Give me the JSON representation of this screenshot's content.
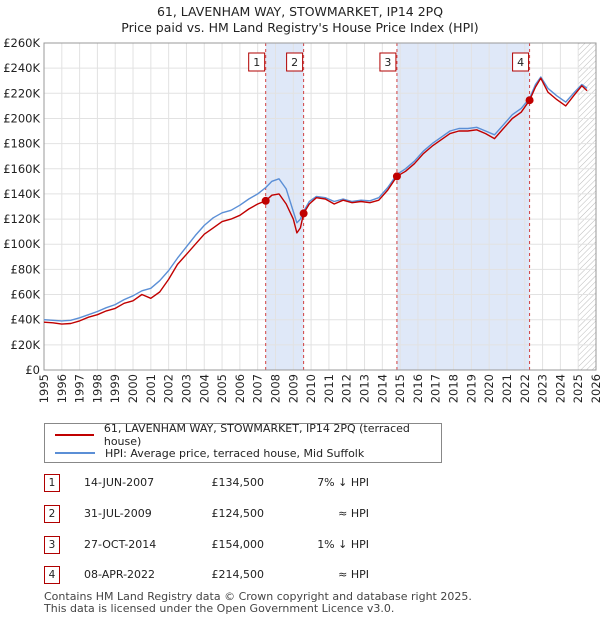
{
  "chart_data": {
    "type": "line",
    "title": "61, LAVENHAM WAY, STOWMARKET, IP14 2PQ",
    "subtitle": "Price paid vs. HM Land Registry's House Price Index (HPI)",
    "xlim": [
      1995,
      2026
    ],
    "ylim": [
      0,
      260000
    ],
    "y_ticks": [
      0,
      20000,
      40000,
      60000,
      80000,
      100000,
      120000,
      140000,
      160000,
      180000,
      200000,
      220000,
      240000,
      260000
    ],
    "y_tick_labels": [
      "£0",
      "£20K",
      "£40K",
      "£60K",
      "£80K",
      "£100K",
      "£120K",
      "£140K",
      "£160K",
      "£180K",
      "£200K",
      "£220K",
      "£240K",
      "£260K"
    ],
    "x_ticks": [
      1995,
      1996,
      1997,
      1998,
      1999,
      2000,
      2001,
      2002,
      2003,
      2004,
      2005,
      2006,
      2007,
      2008,
      2009,
      2010,
      2011,
      2012,
      2013,
      2014,
      2015,
      2016,
      2017,
      2018,
      2019,
      2020,
      2021,
      2022,
      2023,
      2024,
      2025,
      2026
    ],
    "shaded_ranges": [
      [
        2007.45,
        2009.58
      ],
      [
        2014.82,
        2022.27
      ]
    ],
    "future_hatch_from": 2025.0,
    "series": [
      {
        "name": "61, LAVENHAM WAY, STOWMARKET, IP14 2PQ (terraced house)",
        "color": "#c00000",
        "points": [
          [
            1995.0,
            38000
          ],
          [
            1995.5,
            37500
          ],
          [
            1996.0,
            36500
          ],
          [
            1996.5,
            37000
          ],
          [
            1997.0,
            39000
          ],
          [
            1997.5,
            42000
          ],
          [
            1998.0,
            44000
          ],
          [
            1998.5,
            47000
          ],
          [
            1999.0,
            49000
          ],
          [
            1999.5,
            53000
          ],
          [
            2000.0,
            55000
          ],
          [
            2000.5,
            60000
          ],
          [
            2001.0,
            57000
          ],
          [
            2001.5,
            62000
          ],
          [
            2002.0,
            72000
          ],
          [
            2002.5,
            84000
          ],
          [
            2003.0,
            92000
          ],
          [
            2003.5,
            100000
          ],
          [
            2004.0,
            108000
          ],
          [
            2004.5,
            113000
          ],
          [
            2005.0,
            118000
          ],
          [
            2005.5,
            120000
          ],
          [
            2006.0,
            123000
          ],
          [
            2006.5,
            128000
          ],
          [
            2007.0,
            132000
          ],
          [
            2007.45,
            134500
          ],
          [
            2007.8,
            139000
          ],
          [
            2008.2,
            140000
          ],
          [
            2008.6,
            132000
          ],
          [
            2009.0,
            120000
          ],
          [
            2009.2,
            109000
          ],
          [
            2009.4,
            113000
          ],
          [
            2009.58,
            124500
          ],
          [
            2009.9,
            132000
          ],
          [
            2010.3,
            137000
          ],
          [
            2010.8,
            136000
          ],
          [
            2011.3,
            132000
          ],
          [
            2011.8,
            135000
          ],
          [
            2012.3,
            133000
          ],
          [
            2012.8,
            134000
          ],
          [
            2013.3,
            133000
          ],
          [
            2013.8,
            135000
          ],
          [
            2014.3,
            143000
          ],
          [
            2014.82,
            154000
          ],
          [
            2015.3,
            158000
          ],
          [
            2015.8,
            164000
          ],
          [
            2016.3,
            172000
          ],
          [
            2016.8,
            178000
          ],
          [
            2017.3,
            183000
          ],
          [
            2017.8,
            188000
          ],
          [
            2018.3,
            190000
          ],
          [
            2018.8,
            190000
          ],
          [
            2019.3,
            191000
          ],
          [
            2019.8,
            188000
          ],
          [
            2020.3,
            184000
          ],
          [
            2020.8,
            192000
          ],
          [
            2021.3,
            200000
          ],
          [
            2021.8,
            205000
          ],
          [
            2022.27,
            214500
          ],
          [
            2022.6,
            225000
          ],
          [
            2022.9,
            232000
          ],
          [
            2023.3,
            221000
          ],
          [
            2023.8,
            215000
          ],
          [
            2024.3,
            210000
          ],
          [
            2024.8,
            219000
          ],
          [
            2025.2,
            226000
          ],
          [
            2025.5,
            222000
          ]
        ]
      },
      {
        "name": "HPI: Average price, terraced house, Mid Suffolk",
        "color": "#5b8fd6",
        "points": [
          [
            1995.0,
            40000
          ],
          [
            1995.5,
            39500
          ],
          [
            1996.0,
            39000
          ],
          [
            1996.5,
            39500
          ],
          [
            1997.0,
            41500
          ],
          [
            1997.5,
            44000
          ],
          [
            1998.0,
            46500
          ],
          [
            1998.5,
            49500
          ],
          [
            1999.0,
            52000
          ],
          [
            1999.5,
            56000
          ],
          [
            2000.0,
            59000
          ],
          [
            2000.5,
            63000
          ],
          [
            2001.0,
            65000
          ],
          [
            2001.5,
            71000
          ],
          [
            2002.0,
            79000
          ],
          [
            2002.5,
            89000
          ],
          [
            2003.0,
            98000
          ],
          [
            2003.5,
            107000
          ],
          [
            2004.0,
            115000
          ],
          [
            2004.5,
            121000
          ],
          [
            2005.0,
            125000
          ],
          [
            2005.5,
            127000
          ],
          [
            2006.0,
            131000
          ],
          [
            2006.5,
            136000
          ],
          [
            2007.0,
            140000
          ],
          [
            2007.45,
            145000
          ],
          [
            2007.8,
            150000
          ],
          [
            2008.2,
            152000
          ],
          [
            2008.6,
            144000
          ],
          [
            2009.0,
            126000
          ],
          [
            2009.2,
            117000
          ],
          [
            2009.4,
            120000
          ],
          [
            2009.58,
            126000
          ],
          [
            2009.9,
            134000
          ],
          [
            2010.3,
            138000
          ],
          [
            2010.8,
            137000
          ],
          [
            2011.3,
            134000
          ],
          [
            2011.8,
            136000
          ],
          [
            2012.3,
            134000
          ],
          [
            2012.8,
            135000
          ],
          [
            2013.3,
            134500
          ],
          [
            2013.8,
            137000
          ],
          [
            2014.3,
            145000
          ],
          [
            2014.82,
            155500
          ],
          [
            2015.3,
            160000
          ],
          [
            2015.8,
            166000
          ],
          [
            2016.3,
            174000
          ],
          [
            2016.8,
            180000
          ],
          [
            2017.3,
            185000
          ],
          [
            2017.8,
            190000
          ],
          [
            2018.3,
            192000
          ],
          [
            2018.8,
            192000
          ],
          [
            2019.3,
            193000
          ],
          [
            2019.8,
            190000
          ],
          [
            2020.3,
            187000
          ],
          [
            2020.8,
            195000
          ],
          [
            2021.3,
            203000
          ],
          [
            2021.8,
            208000
          ],
          [
            2022.27,
            216000
          ],
          [
            2022.6,
            227000
          ],
          [
            2022.9,
            233000
          ],
          [
            2023.3,
            224000
          ],
          [
            2023.8,
            218000
          ],
          [
            2024.3,
            213000
          ],
          [
            2024.8,
            221000
          ],
          [
            2025.2,
            227000
          ],
          [
            2025.5,
            224000
          ]
        ]
      }
    ],
    "sales": [
      {
        "n": "1",
        "x": 2007.45,
        "y": 134500,
        "date": "14-JUN-2007",
        "price": "£134,500",
        "hpi": "7% ↓ HPI"
      },
      {
        "n": "2",
        "x": 2009.58,
        "y": 124500,
        "date": "31-JUL-2009",
        "price": "£124,500",
        "hpi": "≈ HPI"
      },
      {
        "n": "3",
        "x": 2014.82,
        "y": 154000,
        "date": "27-OCT-2014",
        "price": "£154,000",
        "hpi": "1% ↓ HPI"
      },
      {
        "n": "4",
        "x": 2022.27,
        "y": 214500,
        "date": "08-APR-2022",
        "price": "£214,500",
        "hpi": "≈ HPI"
      }
    ]
  },
  "legend": {
    "property_label": "61, LAVENHAM WAY, STOWMARKET, IP14 2PQ (terraced house)",
    "hpi_label": "HPI: Average price, terraced house, Mid Suffolk"
  },
  "footer": {
    "line1": "Contains HM Land Registry data © Crown copyright and database right 2025.",
    "line2": "This data is licensed under the Open Government Licence v3.0."
  },
  "colors": {
    "property": "#c00000",
    "hpi": "#5b8fd6",
    "shade": "#dfe8f8",
    "grid": "#e2e2e2"
  }
}
